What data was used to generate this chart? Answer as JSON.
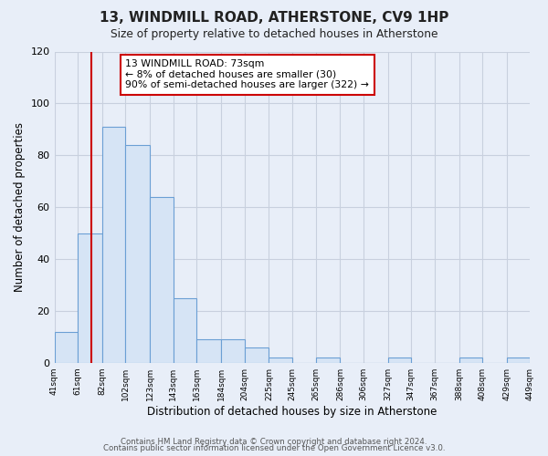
{
  "title": "13, WINDMILL ROAD, ATHERSTONE, CV9 1HP",
  "subtitle": "Size of property relative to detached houses in Atherstone",
  "xlabel": "Distribution of detached houses by size in Atherstone",
  "ylabel": "Number of detached properties",
  "bar_edges": [
    41,
    61,
    82,
    102,
    123,
    143,
    163,
    184,
    204,
    225,
    245,
    265,
    286,
    306,
    327,
    347,
    367,
    388,
    408,
    429,
    449
  ],
  "bar_heights": [
    12,
    50,
    91,
    84,
    64,
    25,
    9,
    9,
    6,
    2,
    0,
    2,
    0,
    0,
    2,
    0,
    0,
    2,
    0,
    2
  ],
  "bar_color": "#d6e4f5",
  "bar_edge_color": "#6b9fd4",
  "grid_color": "#c8d0de",
  "background_color": "#e8eef8",
  "plot_bg_color": "#e8eef8",
  "vline_x": 73,
  "vline_color": "#cc0000",
  "annotation_box_color": "#cc0000",
  "annotation_text_line1": "13 WINDMILL ROAD: 73sqm",
  "annotation_text_line2": "← 8% of detached houses are smaller (30)",
  "annotation_text_line3": "90% of semi-detached houses are larger (322) →",
  "ylim": [
    0,
    120
  ],
  "yticks": [
    0,
    20,
    40,
    60,
    80,
    100,
    120
  ],
  "tick_labels": [
    "41sqm",
    "61sqm",
    "82sqm",
    "102sqm",
    "123sqm",
    "143sqm",
    "163sqm",
    "184sqm",
    "204sqm",
    "225sqm",
    "245sqm",
    "265sqm",
    "286sqm",
    "306sqm",
    "327sqm",
    "347sqm",
    "367sqm",
    "388sqm",
    "408sqm",
    "429sqm",
    "449sqm"
  ],
  "footer_line1": "Contains HM Land Registry data © Crown copyright and database right 2024.",
  "footer_line2": "Contains public sector information licensed under the Open Government Licence v3.0."
}
